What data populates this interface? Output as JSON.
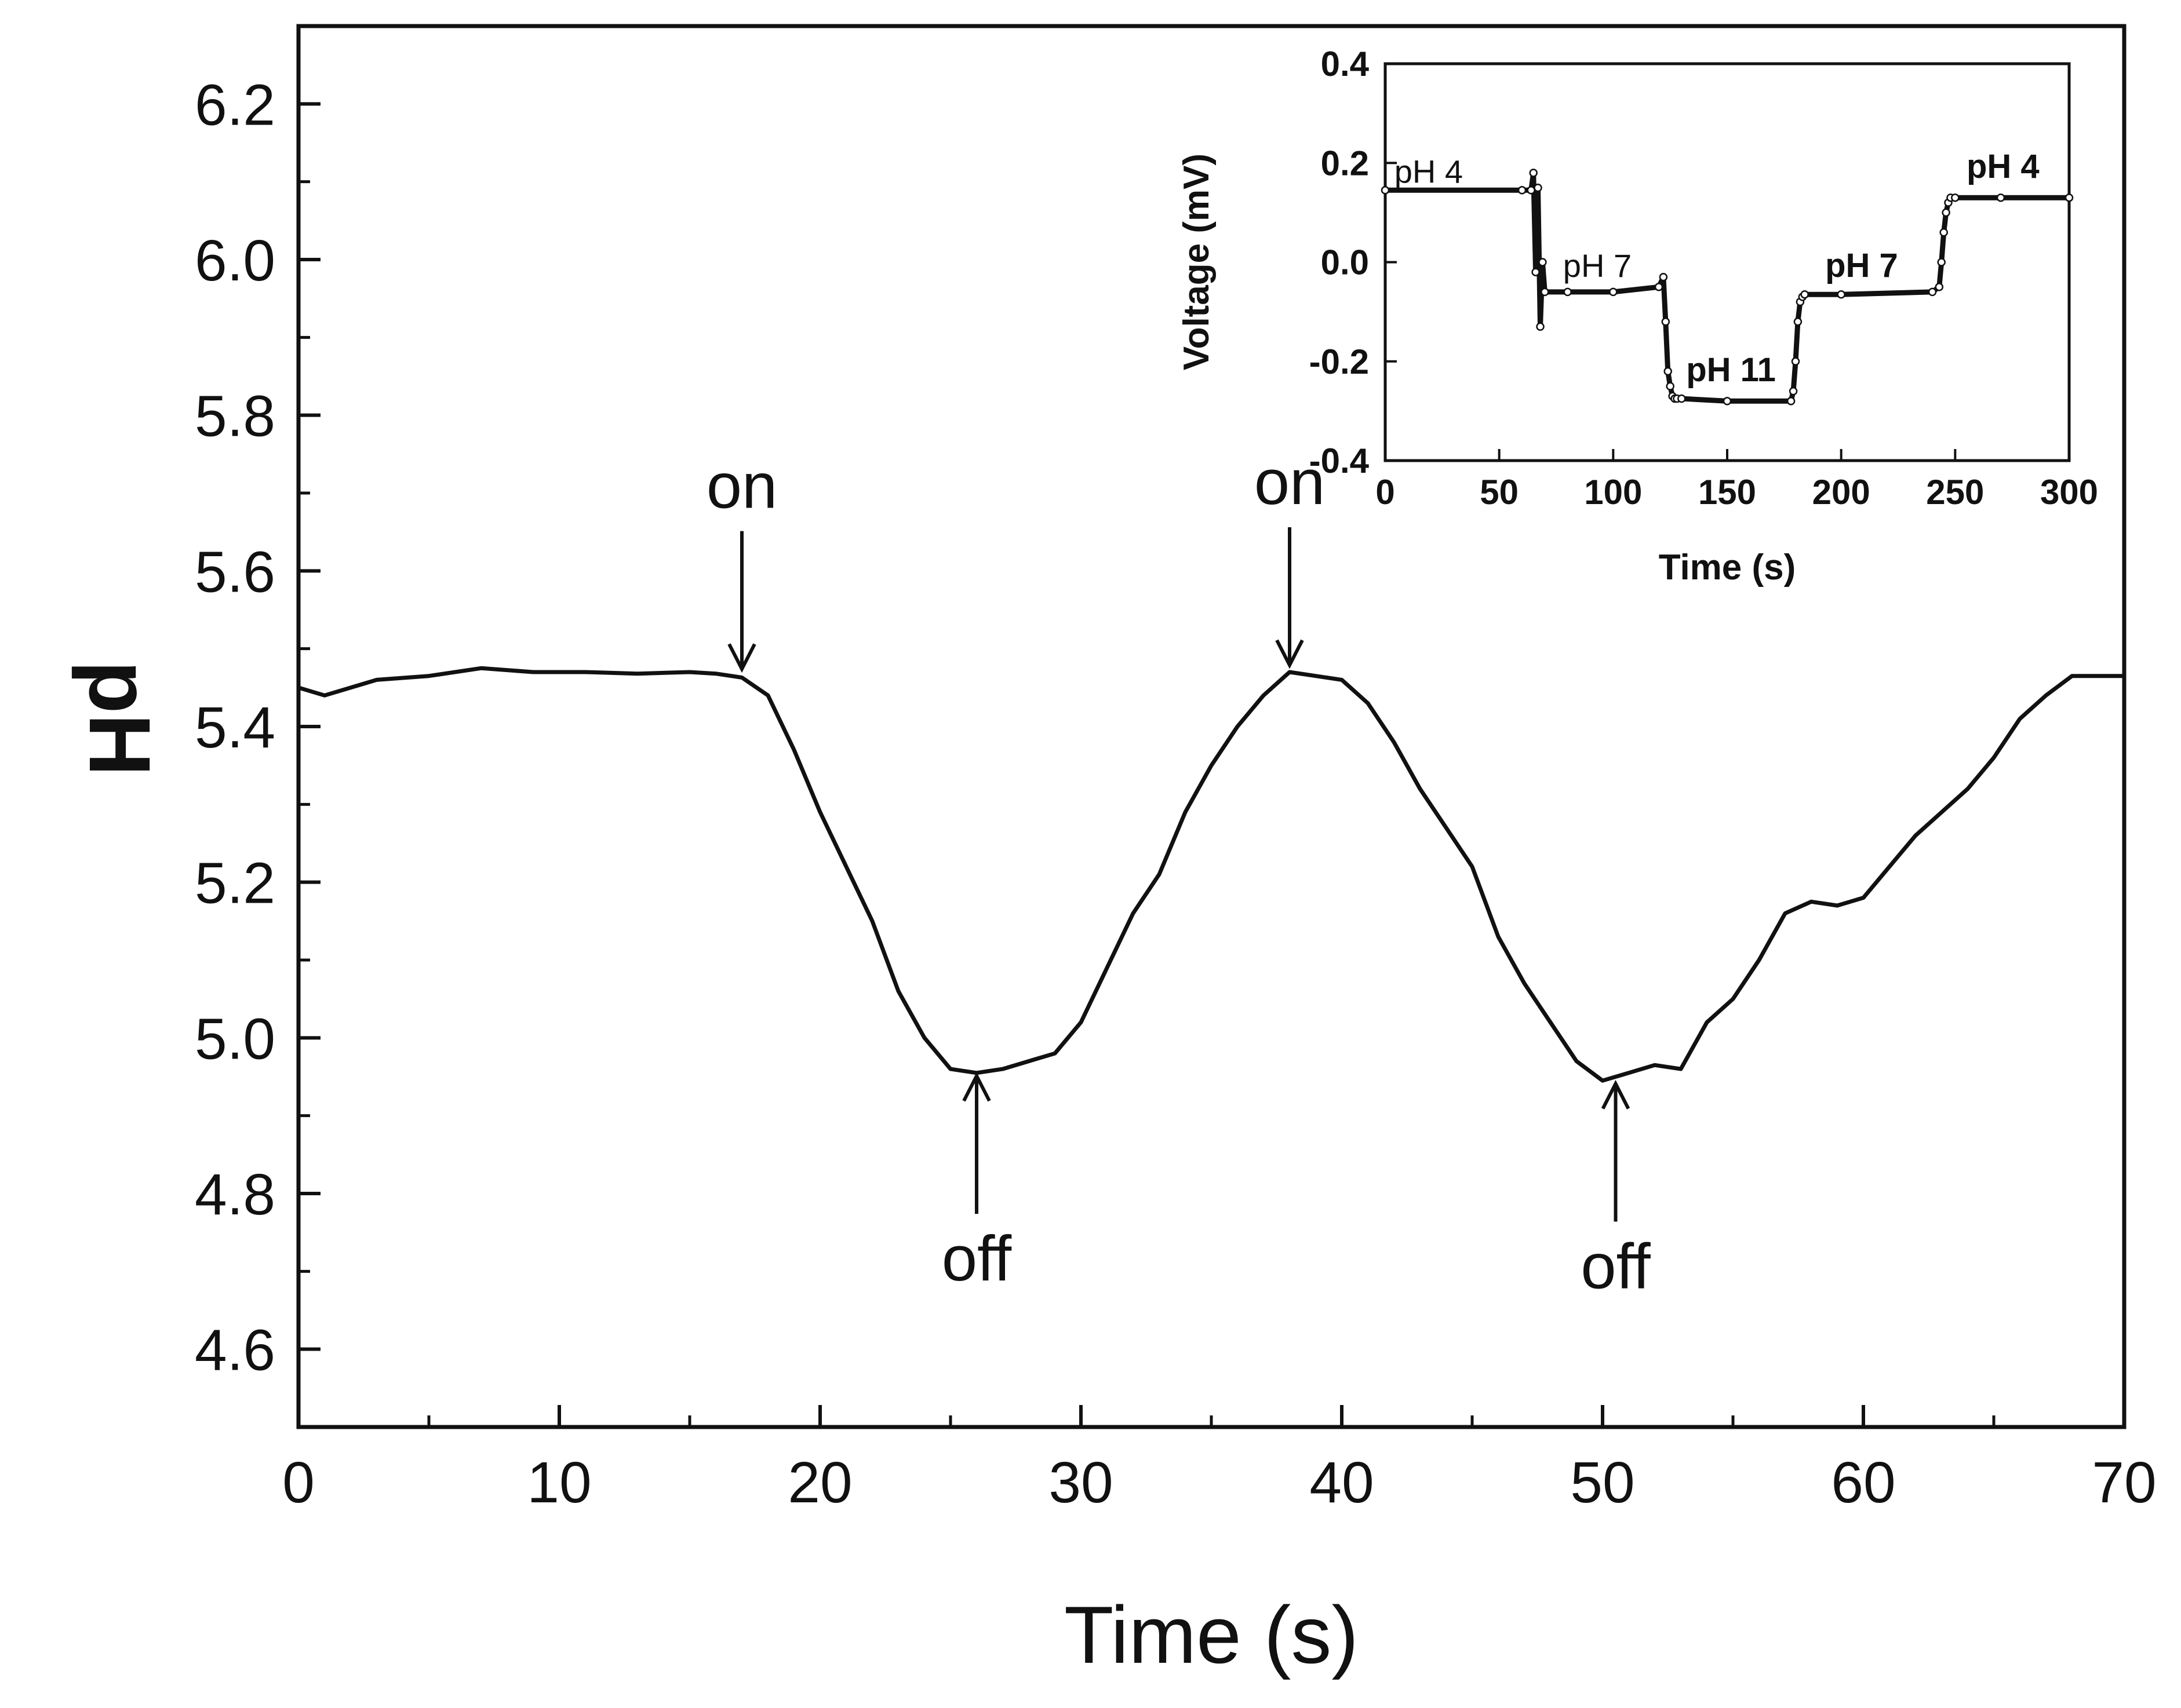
{
  "colors": {
    "line": "#111111",
    "background": "#ffffff"
  },
  "chart_data": [
    {
      "type": "line",
      "title": "",
      "xlabel": "Time (s)",
      "ylabel": "pH",
      "xlim": [
        0,
        70
      ],
      "ylim": [
        4.5,
        6.3
      ],
      "xticks": [
        "0",
        "10",
        "20",
        "30",
        "40",
        "50",
        "60",
        "70"
      ],
      "xtick_values": [
        0,
        10,
        20,
        30,
        40,
        50,
        60,
        70
      ],
      "yticks": [
        "4.6",
        "4.8",
        "5.0",
        "5.2",
        "5.4",
        "5.6",
        "5.8",
        "6.0",
        "6.2"
      ],
      "ytick_values": [
        4.6,
        4.8,
        5.0,
        5.2,
        5.4,
        5.6,
        5.8,
        6.0,
        6.2
      ],
      "grid": false,
      "series": [
        {
          "name": "pH",
          "x": [
            0,
            1,
            3,
            5,
            7,
            9,
            11,
            13,
            15,
            16,
            17,
            18,
            19,
            20,
            21,
            22,
            23,
            24,
            25,
            26,
            27,
            28,
            29,
            30,
            31,
            32,
            33,
            34,
            35,
            36,
            37,
            38,
            39,
            40,
            41,
            42,
            43,
            44,
            45,
            46,
            47,
            48,
            49,
            50,
            51,
            52,
            53,
            54,
            55,
            56,
            57,
            58,
            59,
            60,
            61,
            62,
            63,
            64,
            65,
            66,
            67,
            68,
            70
          ],
          "y": [
            5.45,
            5.44,
            5.46,
            5.465,
            5.475,
            5.47,
            5.47,
            5.468,
            5.47,
            5.468,
            5.463,
            5.44,
            5.37,
            5.29,
            5.22,
            5.15,
            5.06,
            5.0,
            4.96,
            4.955,
            4.96,
            4.97,
            4.98,
            5.02,
            5.09,
            5.16,
            5.21,
            5.29,
            5.35,
            5.4,
            5.44,
            5.47,
            5.465,
            5.46,
            5.43,
            5.38,
            5.32,
            5.27,
            5.22,
            5.13,
            5.07,
            5.02,
            4.97,
            4.945,
            4.955,
            4.965,
            4.96,
            5.02,
            5.05,
            5.1,
            5.16,
            5.175,
            5.17,
            5.18,
            5.22,
            5.26,
            5.29,
            5.32,
            5.36,
            5.41,
            5.44,
            5.465,
            5.465
          ]
        }
      ],
      "annotations": [
        {
          "text": "on",
          "x": 17,
          "y": 5.465,
          "direction": "down"
        },
        {
          "text": "off",
          "x": 26,
          "y": 4.96,
          "direction": "up"
        },
        {
          "text": "on",
          "x": 38,
          "y": 5.47,
          "direction": "down"
        },
        {
          "text": "off",
          "x": 50.5,
          "y": 4.95,
          "direction": "up"
        }
      ]
    },
    {
      "type": "scatter",
      "title": "",
      "xlabel": "Time (s)",
      "ylabel": "Voltage (mV)",
      "xlim": [
        0,
        300
      ],
      "ylim": [
        -0.4,
        0.4
      ],
      "xticks": [
        "0",
        "50",
        "100",
        "150",
        "200",
        "250",
        "300"
      ],
      "xtick_values": [
        0,
        50,
        100,
        150,
        200,
        250,
        300
      ],
      "yticks": [
        "-0.4",
        "-0.2",
        "0.0",
        "0.2",
        "0.4"
      ],
      "ytick_values": [
        -0.4,
        -0.2,
        0.0,
        0.2,
        0.4
      ],
      "grid": false,
      "series": [
        {
          "name": "Voltage",
          "x": [
            0,
            60,
            64,
            65,
            66,
            67,
            68,
            69,
            70,
            80,
            100,
            120,
            122,
            123,
            124,
            125,
            126,
            127,
            128,
            130,
            150,
            178,
            179,
            180,
            181,
            182,
            183,
            184,
            200,
            240,
            243,
            244,
            245,
            246,
            247,
            248,
            250,
            270,
            300
          ],
          "y": [
            0.145,
            0.145,
            0.145,
            0.18,
            -0.02,
            0.15,
            -0.13,
            0.0,
            -0.06,
            -0.06,
            -0.06,
            -0.05,
            -0.03,
            -0.12,
            -0.22,
            -0.25,
            -0.27,
            -0.275,
            -0.275,
            -0.275,
            -0.28,
            -0.28,
            -0.26,
            -0.2,
            -0.12,
            -0.08,
            -0.07,
            -0.065,
            -0.065,
            -0.06,
            -0.05,
            0.0,
            0.06,
            0.1,
            0.12,
            0.13,
            0.13,
            0.13,
            0.13
          ]
        }
      ],
      "annotations": [
        {
          "text": "pH 4",
          "x": 4,
          "y": 0.16
        },
        {
          "text": "pH 7",
          "x": 78,
          "y": -0.03
        },
        {
          "text": "pH 11",
          "x": 132,
          "y": -0.24
        },
        {
          "text": "pH 7",
          "x": 193,
          "y": -0.03
        },
        {
          "text": "pH 4",
          "x": 255,
          "y": 0.17
        }
      ]
    }
  ]
}
